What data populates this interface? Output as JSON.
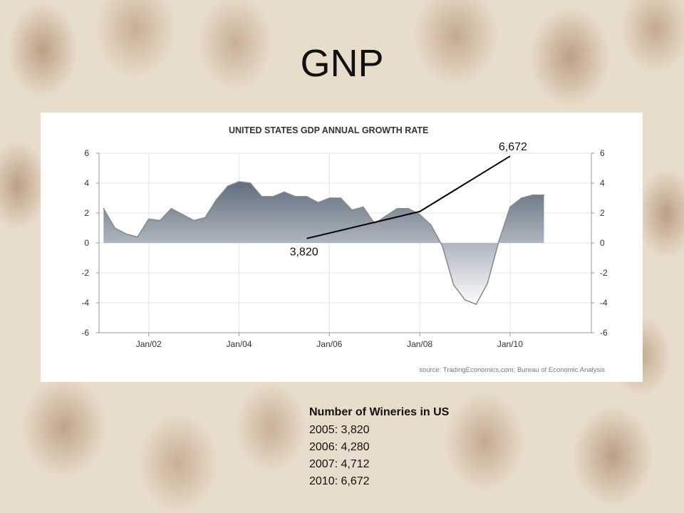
{
  "slide": {
    "title": "GNP"
  },
  "chart_data": {
    "type": "area",
    "title": "UNITED STATES GDP ANNUAL GROWTH RATE",
    "source": "source: TradingEconomics.com; Bureau of Economic Analysis",
    "x_tick_labels": [
      "Jan/02",
      "Jan/04",
      "Jan/06",
      "Jan/08",
      "Jan/10"
    ],
    "y_ticks_left": [
      "6",
      "4",
      "2",
      "0",
      "-2",
      "-4",
      "-6"
    ],
    "y_ticks_right": [
      "6",
      "4",
      "2",
      "0",
      "-2",
      "-4",
      "-6"
    ],
    "ylim": [
      -6,
      6
    ],
    "xlim_years": [
      2000.9,
      2011.8
    ],
    "grid": true,
    "series": [
      {
        "x": [
          2001.0,
          2001.25,
          2001.5,
          2001.75,
          2002.0,
          2002.25,
          2002.5,
          2002.75,
          2003.0,
          2003.25,
          2003.5,
          2003.75,
          2004.0,
          2004.25,
          2004.5,
          2004.75,
          2005.0,
          2005.25,
          2005.5,
          2005.75,
          2006.0,
          2006.25,
          2006.5,
          2006.75,
          2007.0,
          2007.25,
          2007.5,
          2007.75,
          2008.0,
          2008.25,
          2008.5,
          2008.75,
          2009.0,
          2009.25,
          2009.5,
          2009.75,
          2010.0,
          2010.25,
          2010.5,
          2010.75
        ],
        "values": [
          2.3,
          1.0,
          0.6,
          0.4,
          1.6,
          1.5,
          2.3,
          1.9,
          1.5,
          1.7,
          2.9,
          3.8,
          4.1,
          4.0,
          3.1,
          3.1,
          3.4,
          3.1,
          3.1,
          2.7,
          3.0,
          3.0,
          2.2,
          2.4,
          1.3,
          1.8,
          2.3,
          2.3,
          1.9,
          1.2,
          -0.2,
          -2.8,
          -3.8,
          -4.1,
          -2.7,
          0.1,
          2.4,
          3.0,
          3.2,
          3.2
        ]
      }
    ],
    "annotations": [
      {
        "label": "3,820",
        "x": 2005.5,
        "y": 0.3
      },
      {
        "label": "6,672",
        "x": 2010.0,
        "y": 5.8
      }
    ],
    "annotation_line": [
      {
        "x": 2005.5,
        "y": 0.3
      },
      {
        "x": 2008.0,
        "y": 2.1
      },
      {
        "x": 2010.0,
        "y": 5.8
      }
    ],
    "colors": {
      "area_top": "#5d6b7c",
      "area_bottom": "#ffffff",
      "outline": "#888888",
      "grid": "#e6e6e6",
      "annotation": "#000000"
    }
  },
  "wineries": {
    "heading": "Number of Wineries in US",
    "items": [
      "2005: 3,820",
      "2006: 4,280",
      "2007: 4,712",
      "2010: 6,672"
    ]
  }
}
